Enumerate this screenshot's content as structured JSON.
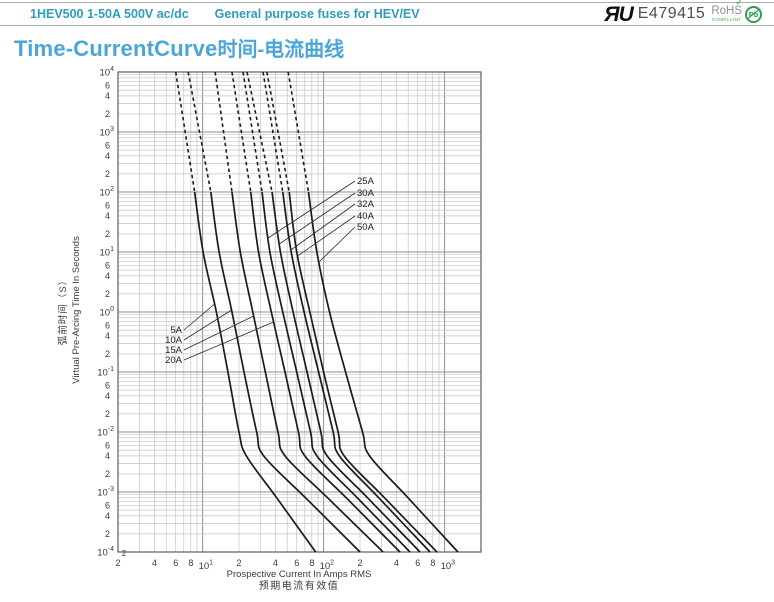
{
  "header": {
    "product": "1HEV500 1-50A 500V ac/dc",
    "subtitle": "General purpose fuses for HEV/EV",
    "ul_mark": "ЯU",
    "ul_number": "E479415",
    "rohs": {
      "check": "✓",
      "label": "RoHS",
      "compliant": "COMPLIANT",
      "pb": "Pb"
    }
  },
  "title": {
    "en": "Time-CurrentCurve",
    "zh": "时间-电流曲线"
  },
  "colors": {
    "header_text": "#2d9cc2",
    "title_text": "#4aa6d8",
    "curve": "#1b1b1b",
    "grid_minor": "#c4c4c4",
    "grid_major": "#8f8f8f",
    "frame": "#5f5f5f",
    "tick_text": "#3a3a3a",
    "rule": "#adadad",
    "rohs_green": "#3aa94d"
  },
  "chart_data": {
    "type": "line",
    "title": "Time-CurrentCurve 时间-电流曲线",
    "x_axis": {
      "label_en": "Prospective Current In Amps RMS",
      "label_zh": "预期电流有效值",
      "scale": "log",
      "range_amps": [
        2,
        2000
      ],
      "decade_exponents": [
        1,
        2,
        3
      ],
      "minor_tick_labels": [
        "2",
        "4",
        "6",
        "8"
      ],
      "corner_label": "2"
    },
    "y_axis": {
      "label_zh": "弧前时间（S）",
      "label_en": "Virtual Pre-Arcing Time In Seconds",
      "scale": "log",
      "range_seconds": [
        0.0001,
        10000
      ],
      "decade_exponents": [
        4,
        3,
        2,
        1,
        0,
        -1,
        -2,
        -3,
        -4
      ],
      "minor_tick_labels": [
        "6",
        "4",
        "2"
      ]
    },
    "grid": true,
    "dashed_above_seconds": 100,
    "t_points": [
      10000,
      100,
      10,
      1,
      0.1,
      0.01,
      0.004,
      0.0008,
      0.0001
    ],
    "series": [
      {
        "name": "5A",
        "amps": [
          6.0,
          8.6,
          10.1,
          13,
          16.2,
          20,
          23,
          41,
          86
        ]
      },
      {
        "name": "10A",
        "amps": [
          7.6,
          11.7,
          13.7,
          17.5,
          22,
          28,
          32,
          71,
          200
        ]
      },
      {
        "name": "15A",
        "amps": [
          12.7,
          17.5,
          20.5,
          26,
          33,
          42,
          48,
          108,
          310
        ]
      },
      {
        "name": "20A",
        "amps": [
          17.5,
          25,
          29,
          37,
          48,
          62,
          70,
          154,
          428
        ]
      },
      {
        "name": "25A",
        "amps": [
          21.6,
          31,
          36,
          46,
          60,
          78,
          88,
          190,
          518
        ]
      },
      {
        "name": "30A",
        "amps": [
          23.3,
          37.5,
          44,
          56,
          73,
          95,
          107,
          231,
          627
        ]
      },
      {
        "name": "32A",
        "amps": [
          31.6,
          46,
          54,
          69,
          91,
          120,
          135,
          286,
          758
        ]
      },
      {
        "name": "40A",
        "amps": [
          34,
          52,
          60,
          77,
          100,
          132,
          148,
          319,
          865
        ]
      },
      {
        "name": "50A",
        "amps": [
          51,
          75,
          88,
          112,
          152,
          210,
          240,
          499,
          1290
        ]
      }
    ],
    "annotations": {
      "left": [
        {
          "text": "5A",
          "x": 182,
          "y": 333,
          "target_y": 304
        },
        {
          "text": "10A",
          "x": 182,
          "y": 343,
          "target_y": 310
        },
        {
          "text": "15A",
          "x": 182,
          "y": 353,
          "target_y": 316
        },
        {
          "text": "20A",
          "x": 182,
          "y": 363,
          "target_y": 322
        }
      ],
      "right": [
        {
          "text": "25A",
          "x": 357,
          "y": 184,
          "target_y": 238
        },
        {
          "text": "30A",
          "x": 357,
          "y": 196,
          "target_y": 244
        },
        {
          "text": "32A",
          "x": 357,
          "y": 207,
          "target_y": 250
        },
        {
          "text": "40A",
          "x": 357,
          "y": 219,
          "target_y": 256
        },
        {
          "text": "50A",
          "x": 357,
          "y": 230,
          "target_y": 262
        }
      ]
    }
  }
}
